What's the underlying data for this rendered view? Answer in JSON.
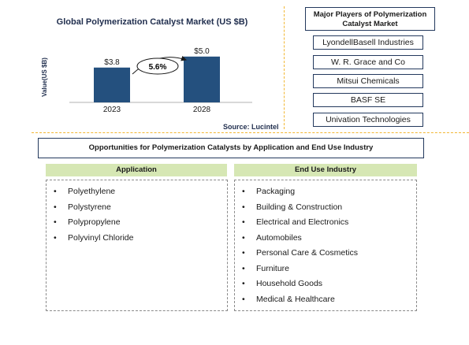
{
  "chart_data": {
    "type": "bar",
    "title": "Global Polymerization Catalyst Market (US $B)",
    "ylabel": "Value(US $B)",
    "xlabel": "",
    "categories": [
      "2023",
      "2028"
    ],
    "values": [
      3.8,
      5.0
    ],
    "value_labels": [
      "$3.8",
      "$5.0"
    ],
    "ylim": [
      0,
      5.5
    ],
    "bar_color": "#24507e",
    "growth_label": "5.6%",
    "source": "Source: Lucintel"
  },
  "players": {
    "title": "Major Players of Polymerization Catalyst Market",
    "items": [
      "LyondellBasell Industries",
      "W. R. Grace and Co",
      "Mitsui Chemicals",
      "BASF SE",
      "Univation Technologies"
    ]
  },
  "opportunities": {
    "title": "Opportunities for Polymerization Catalysts by Application and End Use Industry",
    "application": {
      "header": "Application",
      "items": [
        "Polyethylene",
        "Polystyrene",
        "Polypropylene",
        "Polyvinyl Chloride"
      ]
    },
    "end_use": {
      "header": "End Use Industry",
      "items": [
        "Packaging",
        "Building & Construction",
        "Electrical and Electronics",
        "Automobiles",
        "Personal Care & Cosmetics",
        "Furniture",
        "Household Goods",
        "Medical & Healthcare"
      ]
    }
  },
  "colors": {
    "divider": "#f2b733",
    "box_border": "#23395d",
    "header_fill": "#d6e7b4"
  }
}
